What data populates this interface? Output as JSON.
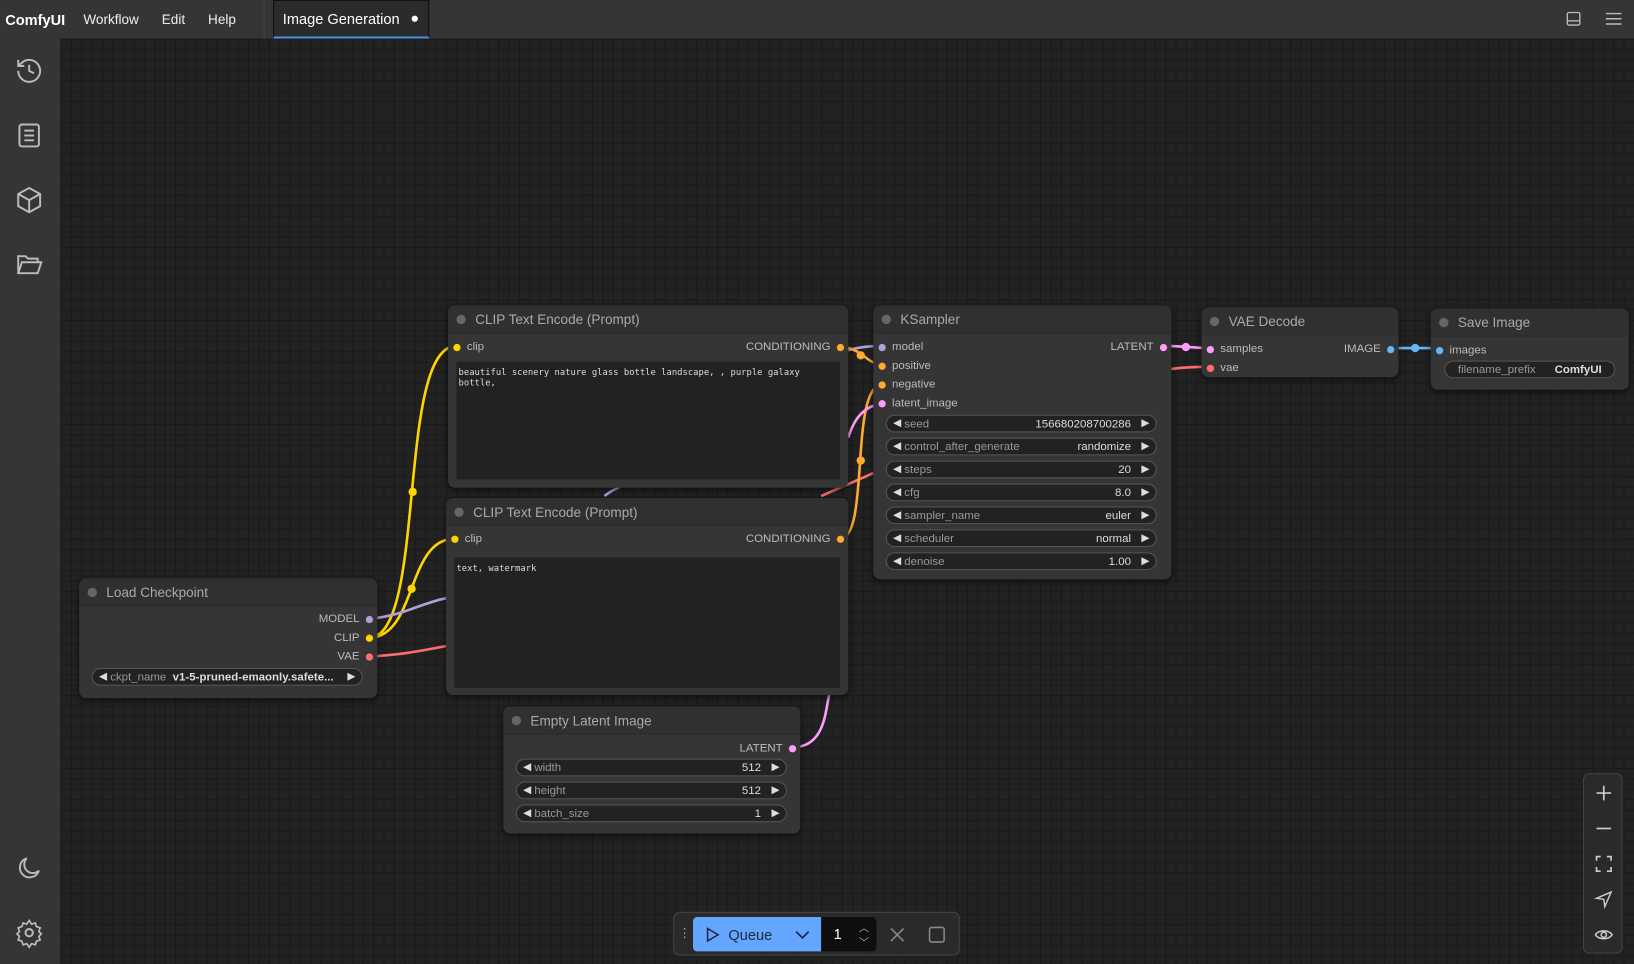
{
  "topbar": {
    "app_name": "ComfyUI",
    "menus": [
      "Workflow",
      "Edit",
      "Help"
    ],
    "active_tab": "Image Generation",
    "tab_unsaved": true
  },
  "sidebar": {
    "items": [
      "history-icon",
      "node-library-icon",
      "model-library-icon",
      "workflows-icon"
    ],
    "bottom": [
      "theme-toggle-icon",
      "settings-icon"
    ]
  },
  "nodes": {
    "load_checkpoint": {
      "title": "Load Checkpoint",
      "outputs": [
        "MODEL",
        "CLIP",
        "VAE"
      ],
      "widgets": [
        {
          "label": "ckpt_name",
          "value": "v1-5-pruned-emaonly.safete..."
        }
      ]
    },
    "clip_pos": {
      "title": "CLIP Text Encode (Prompt)",
      "input": "clip",
      "output": "CONDITIONING",
      "text": "beautiful scenery nature glass bottle landscape, , purple galaxy bottle,"
    },
    "clip_neg": {
      "title": "CLIP Text Encode (Prompt)",
      "input": "clip",
      "output": "CONDITIONING",
      "text": "text, watermark"
    },
    "ksampler": {
      "title": "KSampler",
      "inputs": [
        "model",
        "positive",
        "negative",
        "latent_image"
      ],
      "output": "LATENT",
      "widgets": [
        {
          "label": "seed",
          "value": "156680208700286"
        },
        {
          "label": "control_after_generate",
          "value": "randomize"
        },
        {
          "label": "steps",
          "value": "20"
        },
        {
          "label": "cfg",
          "value": "8.0"
        },
        {
          "label": "sampler_name",
          "value": "euler"
        },
        {
          "label": "scheduler",
          "value": "normal"
        },
        {
          "label": "denoise",
          "value": "1.00"
        }
      ]
    },
    "vae_decode": {
      "title": "VAE Decode",
      "inputs": [
        "samples",
        "vae"
      ],
      "output": "IMAGE"
    },
    "save_image": {
      "title": "Save Image",
      "input": "images",
      "widgets": [
        {
          "label": "filename_prefix",
          "value": "ComfyUI"
        }
      ]
    },
    "empty_latent": {
      "title": "Empty Latent Image",
      "output": "LATENT",
      "widgets": [
        {
          "label": "width",
          "value": "512"
        },
        {
          "label": "height",
          "value": "512"
        },
        {
          "label": "batch_size",
          "value": "1"
        }
      ]
    }
  },
  "colors": {
    "model": "#b39ddb",
    "clip": "#ffd500",
    "vae": "#ff6e6e",
    "conditioning": "#ffa931",
    "latent": "#ff9cf9",
    "image": "#64b5f6",
    "queue_button": "#64a5ff"
  },
  "queue": {
    "label": "Queue",
    "count": "1"
  }
}
